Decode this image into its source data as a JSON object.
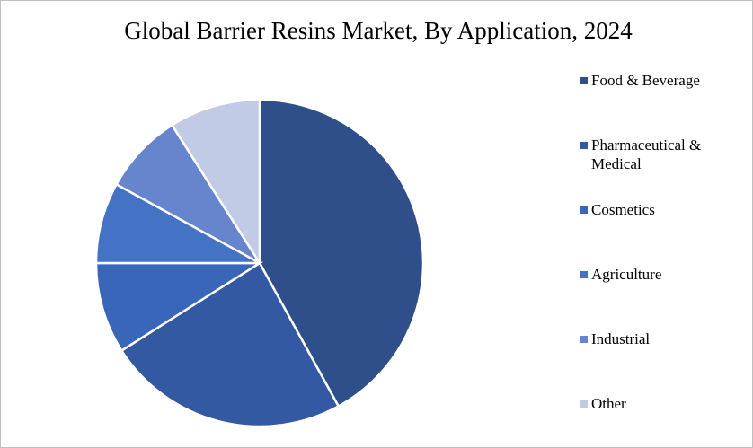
{
  "chart_data": {
    "type": "pie",
    "title": "Global Barrier Resins Market, By Application, 2024",
    "categories": [
      "Food & Beverage",
      "Pharmaceutical & Medical",
      "Cosmetics",
      "Agriculture",
      "Industrial",
      "Other"
    ],
    "values": [
      42,
      24,
      9,
      8,
      8,
      9
    ],
    "colors": [
      "#2f4f8a",
      "#3359a3",
      "#3a66ba",
      "#4472c4",
      "#6685cc",
      "#c1cbe6"
    ],
    "legend": "right"
  }
}
